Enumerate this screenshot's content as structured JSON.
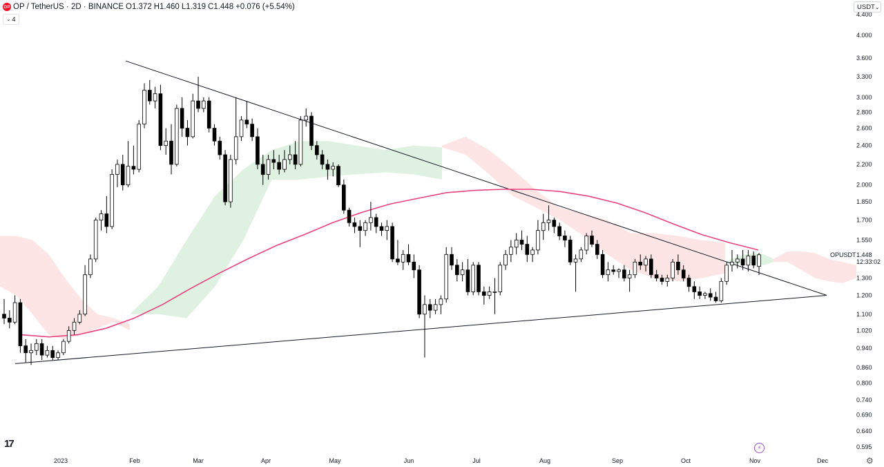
{
  "header": {
    "logo_text": "OP",
    "symbol": "OP / TetherUS · 2D · BINANCE",
    "open_label": "O",
    "open": "1.372",
    "high_label": "H",
    "high": "1.460",
    "low_label": "L",
    "low": "1.319",
    "close_label": "C",
    "close": "1.448",
    "change": "+0.076 (+5.54%)",
    "indicator_count": "4"
  },
  "currency_button": "USDT",
  "price_tag": {
    "symbol": "OPUSDT",
    "price": "1.448",
    "countdown": "12:33:02"
  },
  "colors": {
    "up_body": "#ffffff",
    "down_body": "#000000",
    "wick": "#000000",
    "ma": "#e8427c",
    "cloud_bull": "#d9eedb",
    "cloud_bear": "#fde0e1",
    "trendline": "#131722"
  },
  "chart_data": {
    "type": "candlestick",
    "title": "OP / TetherUS · 2D · BINANCE",
    "y_scale": "log",
    "ylim": [
      0.58,
      4.5
    ],
    "y_ticks": [
      "4.400",
      "4.000",
      "3.600",
      "3.300",
      "3.000",
      "2.800",
      "2.600",
      "2.400",
      "2.200",
      "2.000",
      "1.850",
      "1.700",
      "1.550",
      "1.448",
      "1.300",
      "1.200",
      "1.100",
      "1.020",
      "0.940",
      "0.860",
      "0.800",
      "0.740",
      "0.690",
      "0.640",
      "0.595"
    ],
    "x_ticks": [
      "2023",
      "Feb",
      "Mar",
      "Apr",
      "May",
      "Jun",
      "Jul",
      "Aug",
      "Sep",
      "Oct",
      "Nov",
      "Dec"
    ],
    "candles": [
      {
        "o": 1.1,
        "h": 1.18,
        "l": 1.05,
        "c": 1.08
      },
      {
        "o": 1.08,
        "h": 1.12,
        "l": 1.03,
        "c": 1.06
      },
      {
        "o": 1.06,
        "h": 1.2,
        "l": 1.05,
        "c": 1.16
      },
      {
        "o": 1.16,
        "h": 1.18,
        "l": 0.92,
        "c": 0.95
      },
      {
        "o": 0.95,
        "h": 0.98,
        "l": 0.88,
        "c": 0.92
      },
      {
        "o": 0.92,
        "h": 0.96,
        "l": 0.87,
        "c": 0.93
      },
      {
        "o": 0.93,
        "h": 0.98,
        "l": 0.91,
        "c": 0.96
      },
      {
        "o": 0.96,
        "h": 0.98,
        "l": 0.89,
        "c": 0.91
      },
      {
        "o": 0.91,
        "h": 0.95,
        "l": 0.9,
        "c": 0.93
      },
      {
        "o": 0.93,
        "h": 0.95,
        "l": 0.89,
        "c": 0.9
      },
      {
        "o": 0.9,
        "h": 0.93,
        "l": 0.89,
        "c": 0.92
      },
      {
        "o": 0.92,
        "h": 0.98,
        "l": 0.91,
        "c": 0.97
      },
      {
        "o": 0.97,
        "h": 1.04,
        "l": 0.96,
        "c": 1.02
      },
      {
        "o": 1.02,
        "h": 1.08,
        "l": 1.0,
        "c": 1.06
      },
      {
        "o": 1.06,
        "h": 1.12,
        "l": 1.05,
        "c": 1.1
      },
      {
        "o": 1.1,
        "h": 1.38,
        "l": 1.09,
        "c": 1.32
      },
      {
        "o": 1.32,
        "h": 1.45,
        "l": 1.3,
        "c": 1.42
      },
      {
        "o": 1.42,
        "h": 1.72,
        "l": 1.4,
        "c": 1.7
      },
      {
        "o": 1.7,
        "h": 1.78,
        "l": 1.62,
        "c": 1.75
      },
      {
        "o": 1.75,
        "h": 1.9,
        "l": 1.6,
        "c": 1.65
      },
      {
        "o": 1.65,
        "h": 2.15,
        "l": 1.63,
        "c": 2.1
      },
      {
        "o": 2.1,
        "h": 2.25,
        "l": 1.98,
        "c": 2.2
      },
      {
        "o": 2.2,
        "h": 2.3,
        "l": 1.95,
        "c": 2.0
      },
      {
        "o": 2.0,
        "h": 2.45,
        "l": 1.98,
        "c": 2.18
      },
      {
        "o": 2.18,
        "h": 2.4,
        "l": 2.1,
        "c": 2.15
      },
      {
        "o": 2.15,
        "h": 2.7,
        "l": 2.12,
        "c": 2.65
      },
      {
        "o": 2.65,
        "h": 3.2,
        "l": 2.6,
        "c": 3.1
      },
      {
        "o": 3.1,
        "h": 3.25,
        "l": 2.9,
        "c": 2.95
      },
      {
        "o": 2.95,
        "h": 3.15,
        "l": 2.85,
        "c": 3.05
      },
      {
        "o": 3.05,
        "h": 3.18,
        "l": 2.35,
        "c": 2.4
      },
      {
        "o": 2.4,
        "h": 2.6,
        "l": 2.3,
        "c": 2.45
      },
      {
        "o": 2.45,
        "h": 2.65,
        "l": 2.1,
        "c": 2.2
      },
      {
        "o": 2.2,
        "h": 2.9,
        "l": 2.18,
        "c": 2.85
      },
      {
        "o": 2.85,
        "h": 3.0,
        "l": 2.5,
        "c": 2.6
      },
      {
        "o": 2.6,
        "h": 2.7,
        "l": 2.4,
        "c": 2.5
      },
      {
        "o": 2.5,
        "h": 3.05,
        "l": 2.48,
        "c": 2.95
      },
      {
        "o": 2.95,
        "h": 3.3,
        "l": 2.8,
        "c": 2.85
      },
      {
        "o": 2.85,
        "h": 3.0,
        "l": 2.8,
        "c": 2.95
      },
      {
        "o": 2.95,
        "h": 3.0,
        "l": 2.55,
        "c": 2.6
      },
      {
        "o": 2.6,
        "h": 2.65,
        "l": 2.4,
        "c": 2.45
      },
      {
        "o": 2.45,
        "h": 2.5,
        "l": 2.25,
        "c": 2.3
      },
      {
        "o": 2.3,
        "h": 2.35,
        "l": 1.82,
        "c": 1.85
      },
      {
        "o": 1.85,
        "h": 2.3,
        "l": 1.8,
        "c": 2.25
      },
      {
        "o": 2.25,
        "h": 3.0,
        "l": 2.2,
        "c": 2.5
      },
      {
        "o": 2.5,
        "h": 2.75,
        "l": 2.45,
        "c": 2.7
      },
      {
        "o": 2.7,
        "h": 2.95,
        "l": 2.6,
        "c": 2.65
      },
      {
        "o": 2.65,
        "h": 2.72,
        "l": 2.45,
        "c": 2.5
      },
      {
        "o": 2.5,
        "h": 2.6,
        "l": 2.15,
        "c": 2.2
      },
      {
        "o": 2.2,
        "h": 2.3,
        "l": 2.0,
        "c": 2.1
      },
      {
        "o": 2.1,
        "h": 2.3,
        "l": 2.05,
        "c": 2.25
      },
      {
        "o": 2.25,
        "h": 2.35,
        "l": 2.15,
        "c": 2.22
      },
      {
        "o": 2.22,
        "h": 2.3,
        "l": 2.1,
        "c": 2.15
      },
      {
        "o": 2.15,
        "h": 2.35,
        "l": 2.12,
        "c": 2.25
      },
      {
        "o": 2.25,
        "h": 2.4,
        "l": 2.2,
        "c": 2.3
      },
      {
        "o": 2.3,
        "h": 2.45,
        "l": 2.15,
        "c": 2.2
      },
      {
        "o": 2.2,
        "h": 2.75,
        "l": 2.18,
        "c": 2.7
      },
      {
        "o": 2.7,
        "h": 2.85,
        "l": 2.62,
        "c": 2.75
      },
      {
        "o": 2.75,
        "h": 2.8,
        "l": 2.35,
        "c": 2.4
      },
      {
        "o": 2.4,
        "h": 2.45,
        "l": 2.25,
        "c": 2.3
      },
      {
        "o": 2.3,
        "h": 2.35,
        "l": 2.15,
        "c": 2.2
      },
      {
        "o": 2.2,
        "h": 2.25,
        "l": 2.05,
        "c": 2.15
      },
      {
        "o": 2.15,
        "h": 2.22,
        "l": 2.08,
        "c": 2.18
      },
      {
        "o": 2.18,
        "h": 2.2,
        "l": 1.98,
        "c": 2.0
      },
      {
        "o": 2.0,
        "h": 2.05,
        "l": 1.75,
        "c": 1.78
      },
      {
        "o": 1.78,
        "h": 1.8,
        "l": 1.65,
        "c": 1.68
      },
      {
        "o": 1.68,
        "h": 1.72,
        "l": 1.6,
        "c": 1.65
      },
      {
        "o": 1.65,
        "h": 1.7,
        "l": 1.5,
        "c": 1.62
      },
      {
        "o": 1.62,
        "h": 1.7,
        "l": 1.58,
        "c": 1.68
      },
      {
        "o": 1.68,
        "h": 1.85,
        "l": 1.62,
        "c": 1.72
      },
      {
        "o": 1.72,
        "h": 1.75,
        "l": 1.6,
        "c": 1.65
      },
      {
        "o": 1.65,
        "h": 1.68,
        "l": 1.58,
        "c": 1.62
      },
      {
        "o": 1.62,
        "h": 1.7,
        "l": 1.55,
        "c": 1.65
      },
      {
        "o": 1.65,
        "h": 1.68,
        "l": 1.4,
        "c": 1.42
      },
      {
        "o": 1.42,
        "h": 1.55,
        "l": 1.38,
        "c": 1.4
      },
      {
        "o": 1.4,
        "h": 1.48,
        "l": 1.35,
        "c": 1.45
      },
      {
        "o": 1.45,
        "h": 1.52,
        "l": 1.38,
        "c": 1.4
      },
      {
        "o": 1.4,
        "h": 1.45,
        "l": 1.3,
        "c": 1.35
      },
      {
        "o": 1.35,
        "h": 1.38,
        "l": 1.08,
        "c": 1.1
      },
      {
        "o": 1.1,
        "h": 1.2,
        "l": 0.9,
        "c": 1.15
      },
      {
        "o": 1.15,
        "h": 1.18,
        "l": 1.08,
        "c": 1.12
      },
      {
        "o": 1.12,
        "h": 1.18,
        "l": 1.1,
        "c": 1.15
      },
      {
        "o": 1.15,
        "h": 1.2,
        "l": 1.1,
        "c": 1.18
      },
      {
        "o": 1.18,
        "h": 1.5,
        "l": 1.16,
        "c": 1.45
      },
      {
        "o": 1.45,
        "h": 1.5,
        "l": 1.35,
        "c": 1.38
      },
      {
        "o": 1.38,
        "h": 1.42,
        "l": 1.28,
        "c": 1.32
      },
      {
        "o": 1.32,
        "h": 1.4,
        "l": 1.28,
        "c": 1.35
      },
      {
        "o": 1.35,
        "h": 1.42,
        "l": 1.2,
        "c": 1.22
      },
      {
        "o": 1.22,
        "h": 1.4,
        "l": 1.2,
        "c": 1.38
      },
      {
        "o": 1.38,
        "h": 1.4,
        "l": 1.2,
        "c": 1.22
      },
      {
        "o": 1.22,
        "h": 1.25,
        "l": 1.15,
        "c": 1.2
      },
      {
        "o": 1.2,
        "h": 1.25,
        "l": 1.18,
        "c": 1.22
      },
      {
        "o": 1.22,
        "h": 1.3,
        "l": 1.1,
        "c": 1.22
      },
      {
        "o": 1.22,
        "h": 1.4,
        "l": 1.2,
        "c": 1.38
      },
      {
        "o": 1.38,
        "h": 1.48,
        "l": 1.35,
        "c": 1.45
      },
      {
        "o": 1.45,
        "h": 1.55,
        "l": 1.4,
        "c": 1.5
      },
      {
        "o": 1.5,
        "h": 1.6,
        "l": 1.45,
        "c": 1.55
      },
      {
        "o": 1.55,
        "h": 1.62,
        "l": 1.48,
        "c": 1.52
      },
      {
        "o": 1.52,
        "h": 1.58,
        "l": 1.4,
        "c": 1.45
      },
      {
        "o": 1.45,
        "h": 1.5,
        "l": 1.4,
        "c": 1.48
      },
      {
        "o": 1.48,
        "h": 1.7,
        "l": 1.45,
        "c": 1.62
      },
      {
        "o": 1.62,
        "h": 1.75,
        "l": 1.55,
        "c": 1.68
      },
      {
        "o": 1.68,
        "h": 1.82,
        "l": 1.62,
        "c": 1.7
      },
      {
        "o": 1.7,
        "h": 1.72,
        "l": 1.6,
        "c": 1.65
      },
      {
        "o": 1.65,
        "h": 1.68,
        "l": 1.55,
        "c": 1.58
      },
      {
        "o": 1.58,
        "h": 1.62,
        "l": 1.5,
        "c": 1.55
      },
      {
        "o": 1.55,
        "h": 1.58,
        "l": 1.38,
        "c": 1.4
      },
      {
        "o": 1.4,
        "h": 1.45,
        "l": 1.22,
        "c": 1.42
      },
      {
        "o": 1.42,
        "h": 1.5,
        "l": 1.4,
        "c": 1.48
      },
      {
        "o": 1.48,
        "h": 1.6,
        "l": 1.45,
        "c": 1.58
      },
      {
        "o": 1.58,
        "h": 1.62,
        "l": 1.5,
        "c": 1.52
      },
      {
        "o": 1.52,
        "h": 1.55,
        "l": 1.42,
        "c": 1.45
      },
      {
        "o": 1.45,
        "h": 1.48,
        "l": 1.3,
        "c": 1.32
      },
      {
        "o": 1.32,
        "h": 1.4,
        "l": 1.28,
        "c": 1.35
      },
      {
        "o": 1.35,
        "h": 1.38,
        "l": 1.32,
        "c": 1.34
      },
      {
        "o": 1.34,
        "h": 1.36,
        "l": 1.3,
        "c": 1.35
      },
      {
        "o": 1.35,
        "h": 1.38,
        "l": 1.28,
        "c": 1.3
      },
      {
        "o": 1.3,
        "h": 1.35,
        "l": 1.22,
        "c": 1.32
      },
      {
        "o": 1.32,
        "h": 1.42,
        "l": 1.3,
        "c": 1.4
      },
      {
        "o": 1.4,
        "h": 1.45,
        "l": 1.35,
        "c": 1.38
      },
      {
        "o": 1.38,
        "h": 1.44,
        "l": 1.34,
        "c": 1.42
      },
      {
        "o": 1.42,
        "h": 1.45,
        "l": 1.3,
        "c": 1.32
      },
      {
        "o": 1.32,
        "h": 1.35,
        "l": 1.28,
        "c": 1.3
      },
      {
        "o": 1.3,
        "h": 1.32,
        "l": 1.26,
        "c": 1.28
      },
      {
        "o": 1.28,
        "h": 1.32,
        "l": 1.25,
        "c": 1.3
      },
      {
        "o": 1.3,
        "h": 1.42,
        "l": 1.28,
        "c": 1.4
      },
      {
        "o": 1.4,
        "h": 1.45,
        "l": 1.32,
        "c": 1.35
      },
      {
        "o": 1.35,
        "h": 1.38,
        "l": 1.28,
        "c": 1.3
      },
      {
        "o": 1.3,
        "h": 1.32,
        "l": 1.22,
        "c": 1.25
      },
      {
        "o": 1.25,
        "h": 1.28,
        "l": 1.18,
        "c": 1.22
      },
      {
        "o": 1.22,
        "h": 1.25,
        "l": 1.18,
        "c": 1.2
      },
      {
        "o": 1.2,
        "h": 1.22,
        "l": 1.18,
        "c": 1.21
      },
      {
        "o": 1.21,
        "h": 1.24,
        "l": 1.17,
        "c": 1.19
      },
      {
        "o": 1.19,
        "h": 1.22,
        "l": 1.16,
        "c": 1.17
      },
      {
        "o": 1.17,
        "h": 1.3,
        "l": 1.16,
        "c": 1.28
      },
      {
        "o": 1.28,
        "h": 1.4,
        "l": 1.26,
        "c": 1.38
      },
      {
        "o": 1.38,
        "h": 1.48,
        "l": 1.34,
        "c": 1.4
      },
      {
        "o": 1.4,
        "h": 1.45,
        "l": 1.36,
        "c": 1.42
      },
      {
        "o": 1.42,
        "h": 1.48,
        "l": 1.35,
        "c": 1.38
      },
      {
        "o": 1.38,
        "h": 1.48,
        "l": 1.34,
        "c": 1.44
      },
      {
        "o": 1.44,
        "h": 1.47,
        "l": 1.36,
        "c": 1.38
      },
      {
        "o": 1.372,
        "h": 1.46,
        "l": 1.319,
        "c": 1.448
      }
    ],
    "ma_series": [
      1.0,
      0.99,
      1.0,
      1.03,
      1.08,
      1.15,
      1.24,
      1.33,
      1.42,
      1.51,
      1.59,
      1.68,
      1.76,
      1.83,
      1.88,
      1.93,
      1.95,
      1.96,
      1.96,
      1.94,
      1.9,
      1.84,
      1.76,
      1.67,
      1.59,
      1.53,
      1.48
    ],
    "cloud_segments": [
      {
        "trend": "bear",
        "top": [
          1.58,
          1.58,
          1.55,
          1.45,
          1.3,
          1.18,
          1.1,
          1.08,
          1.05
        ],
        "bottom": [
          1.25,
          1.2,
          1.1,
          1.0,
          0.98,
          1.0,
          1.03,
          1.06,
          1.02
        ]
      },
      {
        "trend": "bull",
        "top": [
          1.1,
          1.25,
          1.55,
          1.9,
          2.15,
          2.35,
          2.45,
          2.45,
          2.4,
          2.35,
          2.4,
          2.38
        ],
        "bottom": [
          1.1,
          1.1,
          1.08,
          1.25,
          1.55,
          2.05,
          2.05,
          2.08,
          2.1,
          2.12,
          2.1,
          2.05
        ]
      },
      {
        "trend": "bear",
        "top": [
          2.4,
          2.5,
          2.35,
          2.15,
          1.95,
          1.8,
          1.75,
          1.7,
          1.6,
          1.6,
          1.58,
          1.55,
          1.53
        ],
        "bottom": [
          2.38,
          2.3,
          2.1,
          1.9,
          1.8,
          1.7,
          1.58,
          1.45,
          1.35,
          1.3,
          1.28,
          1.3,
          1.33
        ]
      },
      {
        "trend": "bull",
        "top": [
          1.4,
          1.43,
          1.45,
          1.46,
          1.45,
          1.42
        ],
        "bottom": [
          1.4,
          1.38,
          1.4,
          1.39,
          1.38,
          1.4
        ]
      },
      {
        "trend": "bear",
        "top": [
          1.42,
          1.47,
          1.47,
          1.46,
          1.42,
          1.4,
          1.38
        ],
        "bottom": [
          1.4,
          1.4,
          1.35,
          1.3,
          1.28,
          1.27,
          1.3
        ]
      }
    ],
    "trendlines": [
      {
        "name": "upper",
        "from": {
          "x": "early Jan 2023",
          "y": 3.55
        },
        "to": {
          "x": "early Dec 2023",
          "y": 1.2
        }
      },
      {
        "name": "lower",
        "from": {
          "x": "late Dec 2022",
          "y": 0.875
        },
        "to": {
          "x": "early Dec 2023",
          "y": 1.2
        }
      }
    ]
  }
}
